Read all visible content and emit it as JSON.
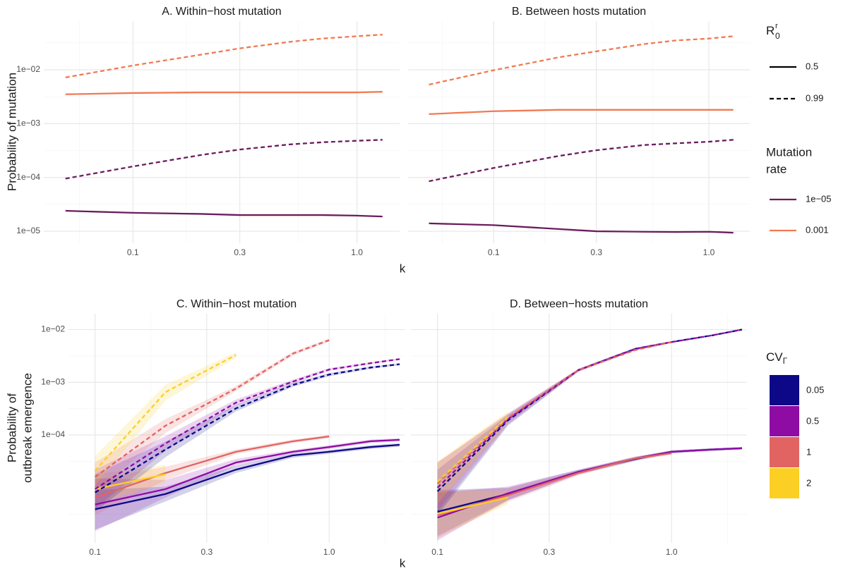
{
  "figure": {
    "top_ylabel": "Probability of mutation",
    "top_xlabel": "k",
    "bottom_ylabel": [
      "Probability of",
      "outbreak emergence"
    ],
    "bottom_xlabel": "k",
    "legend_r0": {
      "title": {
        "text": "R",
        "sup": "r",
        "sub": "0"
      },
      "entries": [
        {
          "label": "0.5",
          "linetype": "solid"
        },
        {
          "label": "0.99",
          "linetype": "dashed"
        }
      ]
    },
    "legend_rate": {
      "title": [
        "Mutation",
        "rate"
      ],
      "entries": [
        {
          "label": "1e−05",
          "color": "#6b1d5c"
        },
        {
          "label": "0.001",
          "color": "#f07a52"
        }
      ]
    },
    "legend_cv": {
      "title": {
        "text": "CV",
        "sub": "Γ"
      },
      "entries": [
        {
          "label": "0.05",
          "color": "#0d0887"
        },
        {
          "label": "0.5",
          "color": "#8e0ca4"
        },
        {
          "label": "1",
          "color": "#e16462"
        },
        {
          "label": "2",
          "color": "#fccf25"
        }
      ]
    }
  },
  "chart_data": [
    {
      "type": "line",
      "title": "A. Within−host mutation",
      "log_x": true,
      "log_y": true,
      "grid": true,
      "x": [
        0.05,
        0.1,
        0.2,
        0.3,
        0.5,
        0.7,
        1,
        1.3
      ],
      "xlim": [
        0.04,
        1.55
      ],
      "xticks": [
        0.1,
        0.3,
        {
          "value": 1,
          "label": "1.0"
        }
      ],
      "xminor": [
        0.0577,
        0.1732,
        0.5477
      ],
      "ylim": [
        6e-06,
        0.08
      ],
      "yticks": [
        {
          "value": 1e-05,
          "label": "1e−05"
        },
        {
          "value": 0.0001,
          "label": "1e−04"
        },
        {
          "value": 0.001,
          "label": "1e−03"
        },
        {
          "value": 0.01,
          "label": "1e−02"
        }
      ],
      "yminor": [
        3.162e-05,
        0.0003162,
        0.003162,
        0.03162
      ],
      "series": [
        {
          "color": "#f07a52",
          "linetype": "dashed",
          "values": [
            0.0072,
            0.012,
            0.019,
            0.025,
            0.033,
            0.038,
            0.042,
            0.045
          ]
        },
        {
          "color": "#f07a52",
          "linetype": "solid",
          "values": [
            0.0035,
            0.0037,
            0.0038,
            0.0038,
            0.0038,
            0.0038,
            0.0038,
            0.0039
          ]
        },
        {
          "color": "#6b1d5c",
          "linetype": "dashed",
          "values": [
            9.5e-05,
            0.00016,
            0.00026,
            0.00033,
            0.00041,
            0.00045,
            0.00048,
            0.0005
          ]
        },
        {
          "color": "#6b1d5c",
          "linetype": "solid",
          "values": [
            2.4e-05,
            2.2e-05,
            2.1e-05,
            2e-05,
            2e-05,
            2e-05,
            1.95e-05,
            1.88e-05
          ]
        }
      ]
    },
    {
      "type": "line",
      "title": "B. Between hosts mutation",
      "log_x": true,
      "log_y": true,
      "grid": true,
      "x": [
        0.05,
        0.1,
        0.2,
        0.3,
        0.5,
        0.7,
        1,
        1.3
      ],
      "xlim": [
        0.04,
        1.55
      ],
      "xticks": [
        0.1,
        0.3,
        {
          "value": 1,
          "label": "1.0"
        }
      ],
      "xminor": [
        0.0577,
        0.1732,
        0.5477
      ],
      "ylim": [
        6e-06,
        0.08
      ],
      "ygrid": [
        1e-05,
        0.0001,
        0.001,
        0.01
      ],
      "yminor": [
        3.162e-05,
        0.0003162,
        0.003162,
        0.03162
      ],
      "series": [
        {
          "color": "#f07a52",
          "linetype": "dashed",
          "values": [
            0.0053,
            0.0098,
            0.017,
            0.022,
            0.03,
            0.035,
            0.038,
            0.042
          ]
        },
        {
          "color": "#f07a52",
          "linetype": "solid",
          "values": [
            0.0015,
            0.0017,
            0.0018,
            0.0018,
            0.0018,
            0.0018,
            0.0018,
            0.0018
          ]
        },
        {
          "color": "#6b1d5c",
          "linetype": "dashed",
          "values": [
            8.5e-05,
            0.00015,
            0.00025,
            0.00032,
            0.0004,
            0.00043,
            0.00046,
            0.0005
          ]
        },
        {
          "color": "#6b1d5c",
          "linetype": "solid",
          "values": [
            1.4e-05,
            1.3e-05,
            1.1e-05,
            1e-05,
            9.8e-06,
            9.7e-06,
            9.8e-06,
            9.4e-06
          ]
        }
      ]
    },
    {
      "type": "line",
      "title": "C. Within−host mutation",
      "log_x": true,
      "log_y": true,
      "grid": true,
      "x": [
        0.1,
        0.2,
        0.4,
        0.7,
        1,
        1.5,
        2
      ],
      "xlim": [
        0.077,
        2.1
      ],
      "xticks": [
        0.1,
        0.3,
        {
          "value": 1,
          "label": "1.0"
        }
      ],
      "xminor": [
        0.1732,
        0.5477,
        1.7321
      ],
      "ylim": [
        9e-07,
        0.02
      ],
      "yticks": [
        {
          "value": 0.0001,
          "label": "1e−04"
        },
        {
          "value": 0.001,
          "label": "1e−03"
        },
        {
          "value": 0.01,
          "label": "1e−02"
        }
      ],
      "yminor": [
        3.162e-06,
        3.162e-05,
        0.0003162,
        0.003162
      ],
      "series": [
        {
          "color": "#0d0887",
          "linetype": "solid",
          "values": [
            3.9e-06,
            7.6e-06,
            2.2e-05,
            4.1e-05,
            4.8e-05,
            5.9e-05,
            6.5e-05
          ],
          "lower": [
            1.6e-06,
            5.5e-06,
            1.9e-05,
            3.7e-05,
            4.4e-05,
            5.4e-05,
            6e-05
          ],
          "upper": [
            9e-06,
            1.05e-05,
            2.6e-05,
            4.5e-05,
            5.2e-05,
            6.4e-05,
            7e-05
          ]
        },
        {
          "color": "#8e0ca4",
          "linetype": "solid",
          "values": [
            4.8e-06,
            9.4e-06,
            3e-05,
            4.8e-05,
            5.9e-05,
            7.6e-05,
            8.1e-05
          ],
          "lower": [
            1.5e-06,
            6.5e-06,
            2.6e-05,
            4.4e-05,
            5.4e-05,
            7e-05,
            7.5e-05
          ],
          "upper": [
            1.5e-05,
            1.4e-05,
            3.5e-05,
            5.2e-05,
            6.4e-05,
            8.2e-05,
            8.7e-05
          ]
        },
        {
          "color": "#e16462",
          "linetype": "solid",
          "values": [
            6.5e-06,
            1.9e-05,
            4.8e-05,
            7.6e-05,
            9.4e-05,
            null,
            null
          ],
          "lower": [
            3e-06,
            1.4e-05,
            4.3e-05,
            7e-05,
            8.7e-05,
            null,
            null
          ],
          "upper": [
            1.4e-05,
            2.5e-05,
            5.3e-05,
            8.2e-05,
            0.0001,
            null,
            null
          ]
        },
        {
          "color": "#fccf25",
          "linetype": "solid",
          "values": [
            9.4e-06,
            1.8e-05,
            null,
            null,
            null,
            null,
            null
          ],
          "lower": [
            5e-06,
            1.2e-05,
            null,
            null,
            null,
            null,
            null
          ],
          "upper": [
            1.8e-05,
            2.7e-05,
            null,
            null,
            null,
            null,
            null
          ]
        },
        {
          "color": "#0d0887",
          "linetype": "dashed",
          "values": [
            8.1e-06,
            5.3e-05,
            0.00032,
            0.00089,
            0.0014,
            0.0019,
            0.0022
          ],
          "lower": [
            3.5e-06,
            3.8e-05,
            0.00028,
            0.00082,
            0.0013,
            0.0018,
            0.0021
          ],
          "upper": [
            1.8e-05,
            7.5e-05,
            0.00037,
            0.00097,
            0.0015,
            0.002,
            0.0023
          ]
        },
        {
          "color": "#8e0ca4",
          "linetype": "dashed",
          "values": [
            9.4e-06,
            6.9e-05,
            0.00041,
            0.00103,
            0.00174,
            0.0023,
            0.00275
          ],
          "lower": [
            4e-06,
            5e-05,
            0.00036,
            0.00095,
            0.00165,
            0.0022,
            0.00265
          ],
          "upper": [
            2.2e-05,
            9.5e-05,
            0.00047,
            0.00112,
            0.00185,
            0.0024,
            0.00285
          ]
        },
        {
          "color": "#e16462",
          "linetype": "dashed",
          "values": [
            1.6e-05,
            0.00015,
            0.00076,
            0.0035,
            0.0063,
            null,
            null
          ],
          "lower": [
            8e-06,
            0.00011,
            0.00068,
            0.0032,
            0.0059,
            null,
            null
          ],
          "upper": [
            3e-05,
            0.0002,
            0.00085,
            0.0038,
            0.0067,
            null,
            null
          ]
        },
        {
          "color": "#fccf25",
          "linetype": "dashed",
          "values": [
            2.1e-05,
            0.00065,
            0.0033,
            null,
            null,
            null,
            null
          ],
          "lower": [
            1.1e-05,
            0.00045,
            0.0029,
            null,
            null,
            null,
            null
          ],
          "upper": [
            4e-05,
            0.0009,
            0.0037,
            null,
            null,
            null,
            null
          ]
        }
      ]
    },
    {
      "type": "line",
      "title": "D. Between−hosts mutation",
      "log_x": true,
      "log_y": true,
      "grid": true,
      "x": [
        0.1,
        0.2,
        0.4,
        0.7,
        1,
        1.5,
        2
      ],
      "xlim": [
        0.077,
        2.1
      ],
      "xticks": [
        0.1,
        0.3,
        {
          "value": 1,
          "label": "1.0"
        }
      ],
      "xminor": [
        0.1732,
        0.5477,
        1.7321
      ],
      "ylim": [
        9e-07,
        0.02
      ],
      "ygrid": [
        0.0001,
        0.001,
        0.01
      ],
      "yminor": [
        3.162e-06,
        3.162e-05,
        0.0003162,
        0.003162
      ],
      "series": [
        {
          "color": "#0d0887",
          "linetype": "solid",
          "values": [
            3.5e-06,
            7.6e-06,
            2e-05,
            3.5e-05,
            4.8e-05,
            5.3e-05,
            5.6e-05
          ],
          "lower": [
            1.2e-06,
            5.8e-06,
            1.8e-05,
            3.2e-05,
            4.5e-05,
            5e-05,
            5.3e-05
          ],
          "upper": [
            9e-06,
            1e-05,
            2.2e-05,
            3.8e-05,
            5.1e-05,
            5.6e-05,
            5.9e-05
          ]
        },
        {
          "color": "#8e0ca4",
          "linetype": "solid",
          "values": [
            2.7e-06,
            7.8e-06,
            2e-05,
            3.6e-05,
            4.8e-05,
            5.3e-05,
            5.6e-05
          ],
          "lower": [
            1e-06,
            5.8e-06,
            1.8e-05,
            3.3e-05,
            4.5e-05,
            5e-05,
            5.3e-05
          ],
          "upper": [
            8e-06,
            1.05e-05,
            2.2e-05,
            3.9e-05,
            5.1e-05,
            5.6e-05,
            5.9e-05
          ]
        },
        {
          "color": "#e16462",
          "linetype": "solid",
          "values": [
            3e-06,
            7.2e-06,
            1.9e-05,
            3.6e-05,
            4.5e-05,
            null,
            null
          ],
          "lower": [
            1.1e-06,
            5.4e-06,
            1.7e-05,
            3.3e-05,
            4.2e-05,
            null,
            null
          ],
          "upper": [
            8.5e-06,
            9.6e-06,
            2.1e-05,
            3.9e-05,
            4.8e-05,
            null,
            null
          ]
        },
        {
          "color": "#fccf25",
          "linetype": "solid",
          "values": [
            3.2e-06,
            6.5e-06,
            null,
            null,
            null,
            null,
            null
          ],
          "lower": [
            1.2e-06,
            4.8e-06,
            null,
            null,
            null,
            null,
            null
          ],
          "upper": [
            8.5e-06,
            8.8e-06,
            null,
            null,
            null,
            null,
            null
          ]
        },
        {
          "color": "#0d0887",
          "linetype": "dashed",
          "values": [
            8.5e-06,
            0.00019,
            0.0017,
            0.0043,
            0.0058,
            0.0078,
            0.01
          ],
          "lower": [
            3e-06,
            0.00015,
            0.0016,
            0.0041,
            0.0056,
            0.0076,
            0.0097
          ],
          "upper": [
            2.2e-05,
            0.00024,
            0.0018,
            0.0045,
            0.006,
            0.008,
            0.0103
          ]
        },
        {
          "color": "#8e0ca4",
          "linetype": "dashed",
          "values": [
            1e-05,
            0.0002,
            0.0017,
            0.0043,
            0.0058,
            0.0078,
            0.01
          ],
          "lower": [
            3.5e-06,
            0.00016,
            0.0016,
            0.0041,
            0.0056,
            0.0076,
            0.0097
          ],
          "upper": [
            3e-05,
            0.00025,
            0.0018,
            0.0045,
            0.006,
            0.008,
            0.0103
          ]
        },
        {
          "color": "#e16462",
          "linetype": "dashed",
          "values": [
            1.2e-05,
            0.00021,
            0.0017,
            0.0041,
            0.0058,
            null,
            null
          ],
          "lower": [
            4.5e-06,
            0.00017,
            0.0016,
            0.0039,
            0.0056,
            null,
            null
          ],
          "upper": [
            3e-05,
            0.00026,
            0.0018,
            0.0043,
            0.006,
            null,
            null
          ]
        },
        {
          "color": "#fccf25",
          "linetype": "dashed",
          "values": [
            1.3e-05,
            0.00022,
            null,
            null,
            null,
            null,
            null
          ],
          "lower": [
            5e-06,
            0.00017,
            null,
            null,
            null,
            null,
            null
          ],
          "upper": [
            3.2e-05,
            0.00028,
            null,
            null,
            null,
            null,
            null
          ]
        }
      ]
    }
  ]
}
